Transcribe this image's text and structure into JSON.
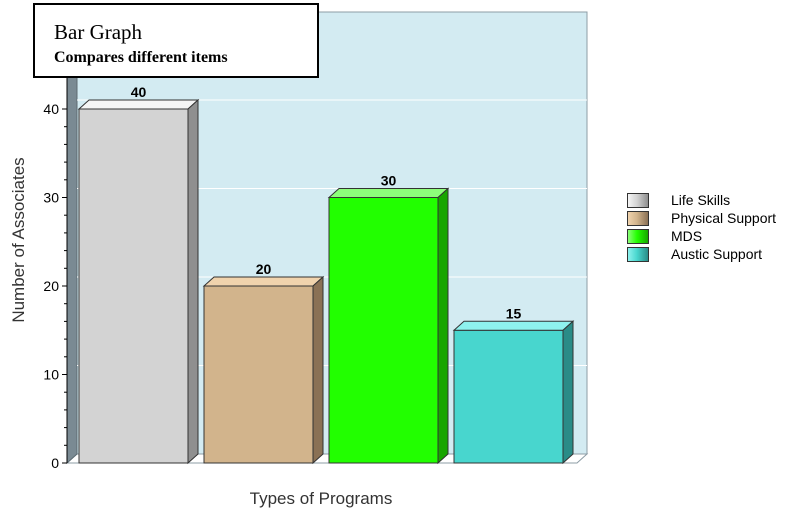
{
  "title": {
    "main": "Bar Graph",
    "subtitle": "Compares different items"
  },
  "chart_data": {
    "type": "bar",
    "categories": [
      "Life Skills",
      "Physical Support",
      "MDS",
      "Austic Support"
    ],
    "values": [
      40,
      20,
      30,
      15
    ],
    "data_labels": [
      "40",
      "20",
      "30",
      "15"
    ],
    "xlabel": "Types of Programs",
    "ylabel": "Number of Associates",
    "ylim": [
      0,
      40
    ],
    "yticks": [
      "0",
      "10",
      "20",
      "30",
      "40"
    ],
    "grid": true,
    "legend_position": "right",
    "colors": {
      "plot_background": "#d3ebf2",
      "gridline": "#ffffff",
      "wall": "#7a8a93"
    },
    "bar_colors": [
      {
        "front": "#d3d3d3",
        "top": "#f5f5f5",
        "side": "#8f8f8f"
      },
      {
        "front": "#d2b48c",
        "top": "#f0d3ad",
        "side": "#8a7155"
      },
      {
        "front": "#22ff00",
        "top": "#8dff7a",
        "side": "#18a500"
      },
      {
        "front": "#48d6ce",
        "top": "#8ef2ee",
        "side": "#2a8c87"
      }
    ]
  }
}
